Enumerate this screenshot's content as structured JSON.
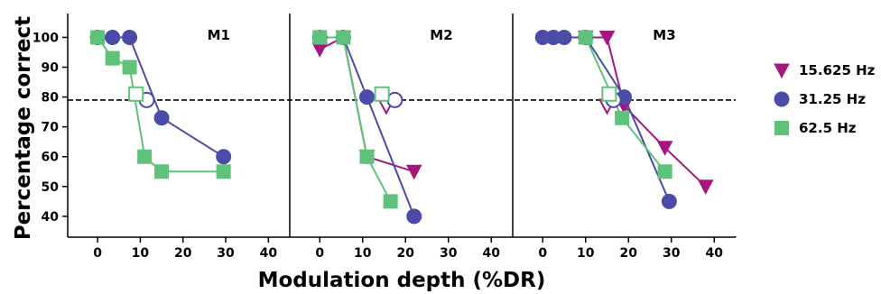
{
  "chart_data": {
    "type": "line",
    "xlabel": "Modulation depth (%DR)",
    "ylabel": "Percentage correct",
    "x_ticks": [
      0,
      10,
      20,
      30,
      40
    ],
    "y_ticks": [
      40,
      50,
      60,
      70,
      80,
      90,
      100
    ],
    "xlim": [
      -7,
      45
    ],
    "ylim": [
      33,
      108
    ],
    "reference_line": 79,
    "legend_position": "right",
    "colors": {
      "15.625 Hz": "#a5177f",
      "31.25 Hz": "#4b4ca8",
      "62.5 Hz": "#5ec27a"
    },
    "legend": [
      {
        "name": "15.625 Hz",
        "marker": "triangle-down",
        "color": "#a5177f"
      },
      {
        "name": "31.25 Hz",
        "marker": "circle",
        "color": "#4b4ca8"
      },
      {
        "name": "62.5 Hz",
        "marker": "square",
        "color": "#5ec27a"
      }
    ],
    "panels": [
      {
        "label": "M1",
        "series": [
          {
            "name": "31.25 Hz",
            "marker": "circle",
            "color": "#4b4ca8",
            "points": [
              [
                0,
                100
              ],
              [
                3.5,
                100
              ],
              [
                7.5,
                100
              ],
              [
                15,
                73
              ],
              [
                29.5,
                60
              ]
            ],
            "threshold": [
              11.5,
              79
            ]
          },
          {
            "name": "62.5 Hz",
            "marker": "square",
            "color": "#5ec27a",
            "points": [
              [
                0,
                100
              ],
              [
                3.5,
                93
              ],
              [
                7.5,
                90
              ],
              [
                11,
                60
              ],
              [
                15,
                55
              ],
              [
                29.5,
                55
              ]
            ],
            "threshold": [
              9,
              81
            ]
          }
        ]
      },
      {
        "label": "M2",
        "series": [
          {
            "name": "15.625 Hz",
            "marker": "triangle-down",
            "color": "#a5177f",
            "points": [
              [
                0,
                96
              ],
              [
                5.5,
                100
              ],
              [
                11,
                60
              ],
              [
                22,
                55
              ]
            ],
            "threshold": [
              15.5,
              77
            ]
          },
          {
            "name": "31.25 Hz",
            "marker": "circle",
            "color": "#4b4ca8",
            "points": [
              [
                0,
                100
              ],
              [
                5.5,
                100
              ],
              [
                11,
                80
              ],
              [
                22,
                40
              ]
            ],
            "threshold": [
              17.5,
              79
            ]
          },
          {
            "name": "62.5 Hz",
            "marker": "square",
            "color": "#5ec27a",
            "points": [
              [
                0,
                100
              ],
              [
                5.5,
                100
              ],
              [
                11,
                60
              ],
              [
                16.5,
                45
              ]
            ],
            "threshold": [
              14.5,
              81
            ]
          }
        ]
      },
      {
        "label": "M3",
        "series": [
          {
            "name": "15.625 Hz",
            "marker": "triangle-down",
            "color": "#a5177f",
            "points": [
              [
                10,
                100
              ],
              [
                15,
                100
              ],
              [
                19,
                77
              ],
              [
                28.5,
                63
              ],
              [
                38,
                50
              ]
            ],
            "threshold": [
              15,
              77
            ]
          },
          {
            "name": "31.25 Hz",
            "marker": "circle",
            "color": "#4b4ca8",
            "points": [
              [
                0,
                100
              ],
              [
                2.5,
                100
              ],
              [
                5,
                100
              ],
              [
                10,
                100
              ],
              [
                19,
                80
              ],
              [
                29.5,
                45
              ]
            ],
            "threshold": [
              16.5,
              79
            ]
          },
          {
            "name": "62.5 Hz",
            "marker": "square",
            "color": "#5ec27a",
            "points": [
              [
                10,
                100
              ],
              [
                18.5,
                73
              ],
              [
                28.5,
                55
              ]
            ],
            "threshold": [
              15.5,
              81
            ]
          }
        ]
      }
    ]
  }
}
